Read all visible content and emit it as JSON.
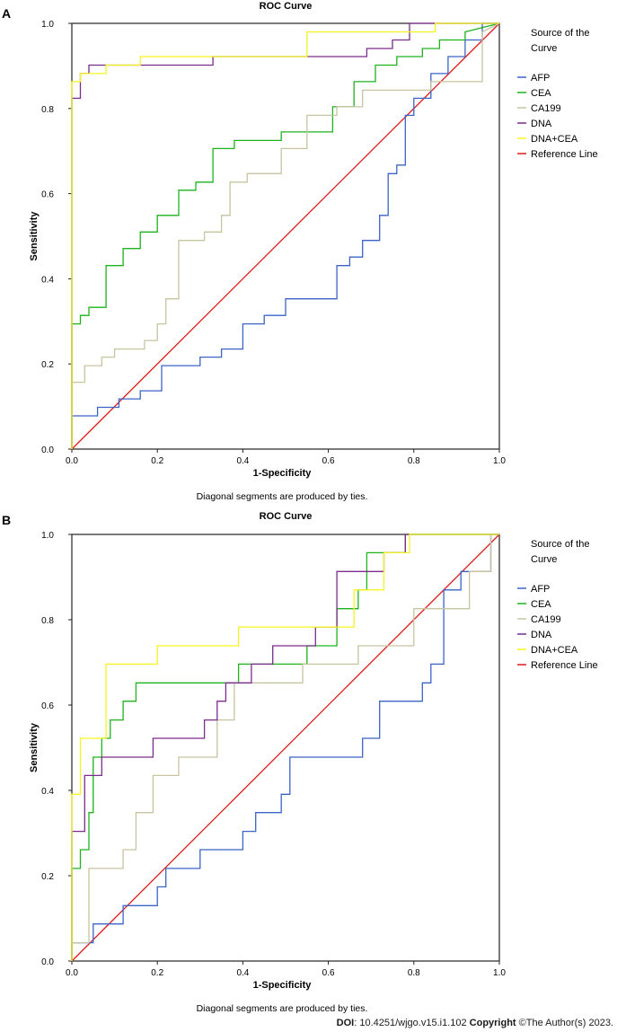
{
  "footer": {
    "doi_label": "DOI",
    "doi_value": ": 10.4251/wjgo.v15.i1.102",
    "copyright_label": "Copyright",
    "copyright_text": " ©The Author(s) 2023."
  },
  "series_colors": {
    "AFP": "#3b63c8",
    "CEA": "#1db31d",
    "CA199": "#c8c4a0",
    "DNA": "#7b2c8c",
    "DNA+CEA": "#f5f51e",
    "Reference Line": "#e01a1a"
  },
  "chart_data": [
    {
      "panel": "A",
      "type": "line",
      "title": "ROC Curve",
      "xlabel": "1-Specificity",
      "ylabel": "Sensitivity",
      "note": "Diagonal segments are produced by ties.",
      "xlim": [
        0,
        1
      ],
      "ylim": [
        0,
        1
      ],
      "xticks": [
        "0.0",
        "0.2",
        "0.4",
        "0.6",
        "0.8",
        "1.0"
      ],
      "yticks": [
        "0.0",
        "0.2",
        "0.4",
        "0.6",
        "0.8",
        "1.0"
      ],
      "legend_title_lines": [
        "Source of the",
        "Curve"
      ],
      "legend_placement": "right",
      "series": [
        {
          "name": "AFP",
          "x": [
            0,
            0,
            0.06,
            0.06,
            0.11,
            0.11,
            0.16,
            0.16,
            0.21,
            0.21,
            0.3,
            0.3,
            0.35,
            0.35,
            0.4,
            0.4,
            0.45,
            0.45,
            0.5,
            0.5,
            0.62,
            0.62,
            0.65,
            0.65,
            0.68,
            0.68,
            0.72,
            0.72,
            0.74,
            0.74,
            0.76,
            0.76,
            0.78,
            0.78,
            0.8,
            0.8,
            0.84,
            0.84,
            0.88,
            0.88,
            0.92,
            0.92,
            0.96,
            0.96,
            1
          ],
          "y": [
            0,
            0.078,
            0.078,
            0.098,
            0.098,
            0.118,
            0.118,
            0.137,
            0.137,
            0.196,
            0.196,
            0.216,
            0.216,
            0.235,
            0.235,
            0.294,
            0.294,
            0.314,
            0.314,
            0.353,
            0.353,
            0.431,
            0.431,
            0.451,
            0.451,
            0.49,
            0.49,
            0.549,
            0.549,
            0.647,
            0.647,
            0.667,
            0.667,
            0.784,
            0.784,
            0.824,
            0.824,
            0.882,
            0.882,
            0.922,
            0.922,
            0.961,
            0.961,
            1,
            1
          ]
        },
        {
          "name": "CEA",
          "x": [
            0,
            0,
            0.02,
            0.02,
            0.04,
            0.04,
            0.08,
            0.08,
            0.12,
            0.12,
            0.16,
            0.16,
            0.2,
            0.2,
            0.25,
            0.25,
            0.29,
            0.29,
            0.33,
            0.33,
            0.38,
            0.38,
            0.49,
            0.49,
            0.61,
            0.61,
            0.66,
            0.66,
            0.71,
            0.71,
            0.76,
            0.76,
            0.82,
            0.82,
            0.86,
            0.86,
            0.92,
            0.92,
            1
          ],
          "y": [
            0,
            0.294,
            0.294,
            0.314,
            0.314,
            0.333,
            0.333,
            0.431,
            0.431,
            0.471,
            0.471,
            0.51,
            0.51,
            0.549,
            0.549,
            0.608,
            0.608,
            0.627,
            0.627,
            0.706,
            0.706,
            0.725,
            0.725,
            0.745,
            0.745,
            0.804,
            0.804,
            0.863,
            0.863,
            0.902,
            0.902,
            0.922,
            0.922,
            0.941,
            0.941,
            0.961,
            0.961,
            0.98,
            1
          ]
        },
        {
          "name": "CA199",
          "x": [
            0,
            0,
            0.03,
            0.03,
            0.07,
            0.07,
            0.1,
            0.1,
            0.17,
            0.17,
            0.2,
            0.2,
            0.22,
            0.22,
            0.25,
            0.25,
            0.31,
            0.31,
            0.35,
            0.35,
            0.37,
            0.37,
            0.41,
            0.41,
            0.49,
            0.49,
            0.55,
            0.55,
            0.62,
            0.62,
            0.68,
            0.68,
            0.84,
            0.84,
            0.96,
            0.96,
            1
          ],
          "y": [
            0,
            0.157,
            0.157,
            0.196,
            0.196,
            0.216,
            0.216,
            0.235,
            0.235,
            0.255,
            0.255,
            0.294,
            0.294,
            0.353,
            0.353,
            0.49,
            0.49,
            0.51,
            0.51,
            0.549,
            0.549,
            0.627,
            0.627,
            0.647,
            0.647,
            0.706,
            0.706,
            0.784,
            0.784,
            0.804,
            0.804,
            0.843,
            0.843,
            0.863,
            0.863,
            0.98,
            1
          ]
        },
        {
          "name": "DNA",
          "x": [
            0,
            0,
            0.02,
            0.02,
            0.04,
            0.04,
            0.08,
            0.08,
            0.33,
            0.33,
            0.55,
            0.55,
            0.69,
            0.69,
            0.75,
            0.75,
            0.79,
            0.79,
            1
          ],
          "y": [
            0,
            0.824,
            0.824,
            0.882,
            0.882,
            0.902,
            0.902,
            0.902,
            0.902,
            0.922,
            0.922,
            0.922,
            0.922,
            0.941,
            0.941,
            0.961,
            0.961,
            1,
            1
          ]
        },
        {
          "name": "DNA+CEA",
          "x": [
            0,
            0,
            0.02,
            0.02,
            0.08,
            0.08,
            0.16,
            0.16,
            0.55,
            0.55,
            0.85,
            0.85,
            1
          ],
          "y": [
            0,
            0.863,
            0.863,
            0.882,
            0.882,
            0.902,
            0.902,
            0.922,
            0.922,
            0.98,
            0.98,
            1,
            1
          ]
        },
        {
          "name": "Reference Line",
          "x": [
            0,
            1
          ],
          "y": [
            0,
            1
          ]
        }
      ]
    },
    {
      "panel": "B",
      "type": "line",
      "title": "ROC Curve",
      "xlabel": "1-Specificity",
      "ylabel": "Sensitivity",
      "note": "Diagonal segments are produced by ties.",
      "xlim": [
        0,
        1
      ],
      "ylim": [
        0,
        1
      ],
      "xticks": [
        "0.0",
        "0.2",
        "0.4",
        "0.6",
        "0.8",
        "1.0"
      ],
      "yticks": [
        "0.0",
        "0.2",
        "0.4",
        "0.6",
        "0.8",
        "1.0"
      ],
      "legend_title_lines": [
        "Source of the",
        "Curve"
      ],
      "legend_placement": "right",
      "series": [
        {
          "name": "AFP",
          "x": [
            0,
            0,
            0.05,
            0.05,
            0.12,
            0.12,
            0.2,
            0.2,
            0.22,
            0.22,
            0.3,
            0.3,
            0.4,
            0.4,
            0.43,
            0.43,
            0.49,
            0.49,
            0.51,
            0.51,
            0.68,
            0.68,
            0.72,
            0.72,
            0.82,
            0.82,
            0.84,
            0.84,
            0.87,
            0.87,
            0.91,
            0.91,
            0.98,
            0.98,
            1
          ],
          "y": [
            0,
            0.043,
            0.043,
            0.087,
            0.087,
            0.13,
            0.13,
            0.174,
            0.174,
            0.217,
            0.217,
            0.261,
            0.261,
            0.304,
            0.304,
            0.348,
            0.348,
            0.391,
            0.391,
            0.478,
            0.478,
            0.522,
            0.522,
            0.609,
            0.609,
            0.652,
            0.652,
            0.696,
            0.696,
            0.87,
            0.87,
            0.913,
            0.913,
            1,
            1
          ]
        },
        {
          "name": "CEA",
          "x": [
            0,
            0,
            0.02,
            0.02,
            0.04,
            0.04,
            0.05,
            0.05,
            0.07,
            0.07,
            0.09,
            0.09,
            0.12,
            0.12,
            0.15,
            0.15,
            0.2,
            0.2,
            0.39,
            0.39,
            0.55,
            0.55,
            0.62,
            0.62,
            0.67,
            0.67,
            0.69,
            0.69,
            0.72,
            0.72,
            0.78,
            0.78,
            1
          ],
          "y": [
            0,
            0.217,
            0.217,
            0.261,
            0.261,
            0.348,
            0.348,
            0.478,
            0.478,
            0.522,
            0.522,
            0.565,
            0.565,
            0.609,
            0.609,
            0.652,
            0.652,
            0.652,
            0.652,
            0.696,
            0.696,
            0.739,
            0.739,
            0.826,
            0.826,
            0.87,
            0.87,
            0.957,
            0.957,
            0.957,
            0.957,
            1,
            1
          ]
        },
        {
          "name": "CA199",
          "x": [
            0,
            0,
            0.04,
            0.04,
            0.12,
            0.12,
            0.15,
            0.15,
            0.19,
            0.19,
            0.25,
            0.25,
            0.34,
            0.34,
            0.38,
            0.38,
            0.54,
            0.54,
            0.67,
            0.67,
            0.8,
            0.8,
            0.93,
            0.93,
            0.98,
            0.98,
            1
          ],
          "y": [
            0,
            0.043,
            0.043,
            0.217,
            0.217,
            0.261,
            0.261,
            0.348,
            0.348,
            0.435,
            0.435,
            0.478,
            0.478,
            0.565,
            0.565,
            0.652,
            0.652,
            0.696,
            0.696,
            0.739,
            0.739,
            0.826,
            0.826,
            0.913,
            0.913,
            1,
            1
          ]
        },
        {
          "name": "DNA",
          "x": [
            0,
            0,
            0.03,
            0.03,
            0.07,
            0.07,
            0.19,
            0.19,
            0.31,
            0.31,
            0.34,
            0.34,
            0.36,
            0.36,
            0.42,
            0.42,
            0.47,
            0.47,
            0.57,
            0.57,
            0.62,
            0.62,
            0.68,
            0.68,
            0.73,
            0.73,
            0.78,
            0.78,
            1
          ],
          "y": [
            0,
            0.304,
            0.304,
            0.435,
            0.435,
            0.478,
            0.478,
            0.522,
            0.522,
            0.565,
            0.565,
            0.609,
            0.609,
            0.652,
            0.652,
            0.696,
            0.696,
            0.739,
            0.739,
            0.783,
            0.783,
            0.913,
            0.913,
            0.913,
            0.913,
            0.957,
            0.957,
            1,
            1
          ]
        },
        {
          "name": "DNA+CEA",
          "x": [
            0,
            0,
            0.02,
            0.02,
            0.08,
            0.08,
            0.2,
            0.2,
            0.39,
            0.39,
            0.66,
            0.66,
            0.73,
            0.73,
            0.79,
            0.79,
            1
          ],
          "y": [
            0,
            0.391,
            0.391,
            0.522,
            0.522,
            0.696,
            0.696,
            0.739,
            0.739,
            0.783,
            0.783,
            0.87,
            0.87,
            0.957,
            0.957,
            1,
            1
          ]
        },
        {
          "name": "Reference Line",
          "x": [
            0,
            1
          ],
          "y": [
            0,
            1
          ]
        }
      ]
    }
  ]
}
